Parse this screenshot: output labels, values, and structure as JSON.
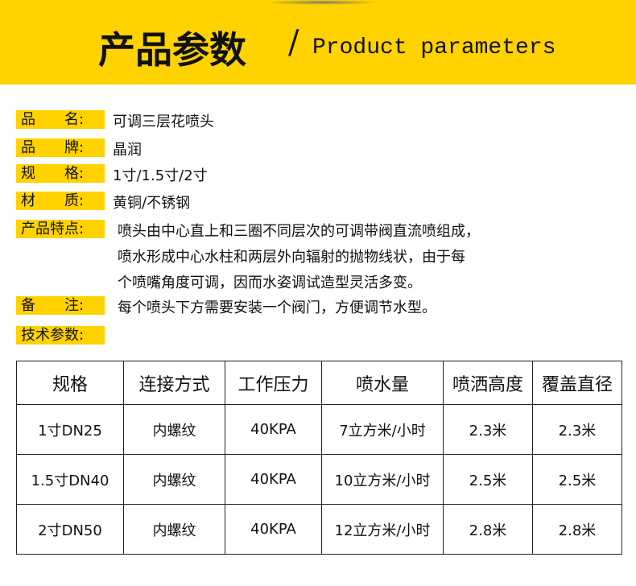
{
  "header": {
    "title": "产品参数",
    "separator": "/",
    "subtitle": "Product parameters"
  },
  "fields": [
    {
      "label": "品　　名:",
      "lines": [
        "可调三层花喷头"
      ]
    },
    {
      "label": "品　　牌:",
      "lines": [
        "晶润"
      ]
    },
    {
      "label": "规　　格:",
      "lines": [
        "1寸/1.5寸/2寸"
      ]
    },
    {
      "label": "材　　质:",
      "lines": [
        "黄铜/不锈钢"
      ]
    },
    {
      "label": "产品特点:",
      "lines": [
        "喷头由中心直上和三圈不同层次的可调带阀直流喷组成，",
        "喷水形成中心水柱和两层外向辐射的抛物线状，由于每",
        "个喷嘴角度可调，因而水姿调试造型灵活多变。"
      ]
    },
    {
      "label": "备　　注:",
      "lines": [
        "每个喷头下方需要安装一个阀门，方便调节水型。"
      ]
    }
  ],
  "tech_label": "技术参数:",
  "table": {
    "header": [
      "规格",
      "连接方式",
      "工作压力",
      "喷水量",
      "喷洒高度",
      "覆盖直径"
    ],
    "rows": [
      [
        "1寸DN25",
        "内螺纹",
        "40KPA",
        "7立方米/小时",
        "2.3米",
        "2.3米"
      ],
      [
        "1.5寸DN40",
        "内螺纹",
        "40KPA",
        "10立方米/小时",
        "2.5米",
        "2.5米"
      ],
      [
        "2寸DN50",
        "内螺纹",
        "40KPA",
        "12立方米/小时",
        "2.8米",
        "2.8米"
      ]
    ]
  }
}
